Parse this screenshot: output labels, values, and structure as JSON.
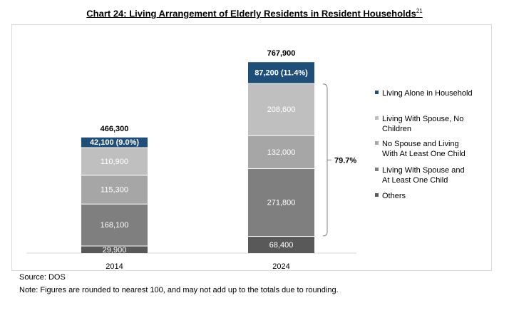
{
  "title": "Chart 24: Living Arrangement of Elderly Residents in Resident Households",
  "title_footnote": "21",
  "source": "Source: DOS",
  "note": "Note: Figures are rounded to nearest 100, and may not add up to the totals due to rounding.",
  "chart_data": {
    "type": "bar",
    "stacked": true,
    "categories": [
      "2014",
      "2024"
    ],
    "totals": [
      466300,
      767900
    ],
    "total_labels": [
      "466,300",
      "767,900"
    ],
    "series": [
      {
        "name": "Others",
        "values": [
          29900,
          68400
        ],
        "labels": [
          "29,900",
          "68,400"
        ],
        "color": "#595959",
        "text_color": "#ffffff"
      },
      {
        "name": "Living With Spouse and At Least One Child",
        "values": [
          168100,
          271800
        ],
        "labels": [
          "168,100",
          "271,800"
        ],
        "color": "#7f7f7f",
        "text_color": "#ffffff"
      },
      {
        "name": "No Spouse and Living With At Least One Child",
        "values": [
          115300,
          132000
        ],
        "labels": [
          "115,300",
          "132,000"
        ],
        "color": "#a6a6a6",
        "text_color": "#ffffff"
      },
      {
        "name": "Living With Spouse, No Children",
        "values": [
          110900,
          208600
        ],
        "labels": [
          "110,900",
          "208,600"
        ],
        "color": "#bfbfbf",
        "text_color": "#ffffff"
      },
      {
        "name": "Living Alone in Household",
        "values": [
          42100,
          87200
        ],
        "labels": [
          "42,100 (9.0%)",
          "87,200 (11.4%)"
        ],
        "color": "#1f4e79",
        "text_color": "#ffffff"
      }
    ],
    "legend": {
      "placement": "right",
      "order": [
        {
          "text": "Living Alone in Household",
          "color": "#1f4e79"
        },
        {
          "text": "Living With Spouse, No Children",
          "color": "#bfbfbf"
        },
        {
          "text": "No Spouse and Living With At Least One Child",
          "color": "#a6a6a6"
        },
        {
          "text": "Living With Spouse and At Least One Child",
          "color": "#7f7f7f"
        },
        {
          "text": "Others",
          "color": "#595959"
        }
      ]
    },
    "annotation": {
      "text": "79.7%",
      "category": "2024",
      "series_from": 1,
      "series_to": 3
    },
    "ylim": [
      0,
      800000
    ],
    "grid": false
  }
}
